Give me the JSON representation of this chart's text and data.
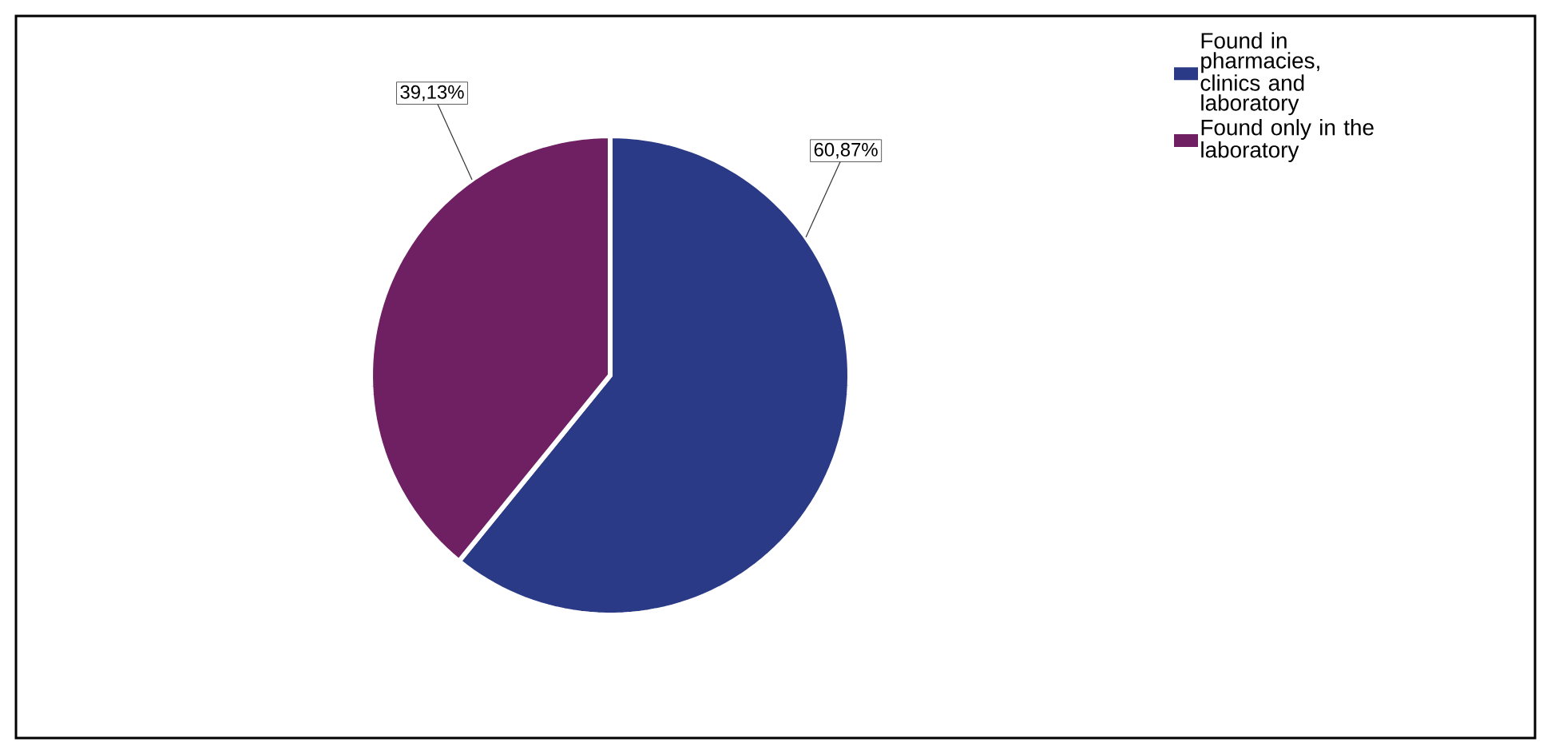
{
  "chart_data": {
    "type": "pie",
    "categories": [
      "Found in pharmacies, clinics and laboratory",
      "Found only in the laboratory"
    ],
    "values": [
      60.87,
      39.13
    ],
    "value_labels": [
      "60,87%",
      "39,13%"
    ],
    "colors": [
      "#2a3a86",
      "#6e2062"
    ],
    "legend": "top right"
  }
}
